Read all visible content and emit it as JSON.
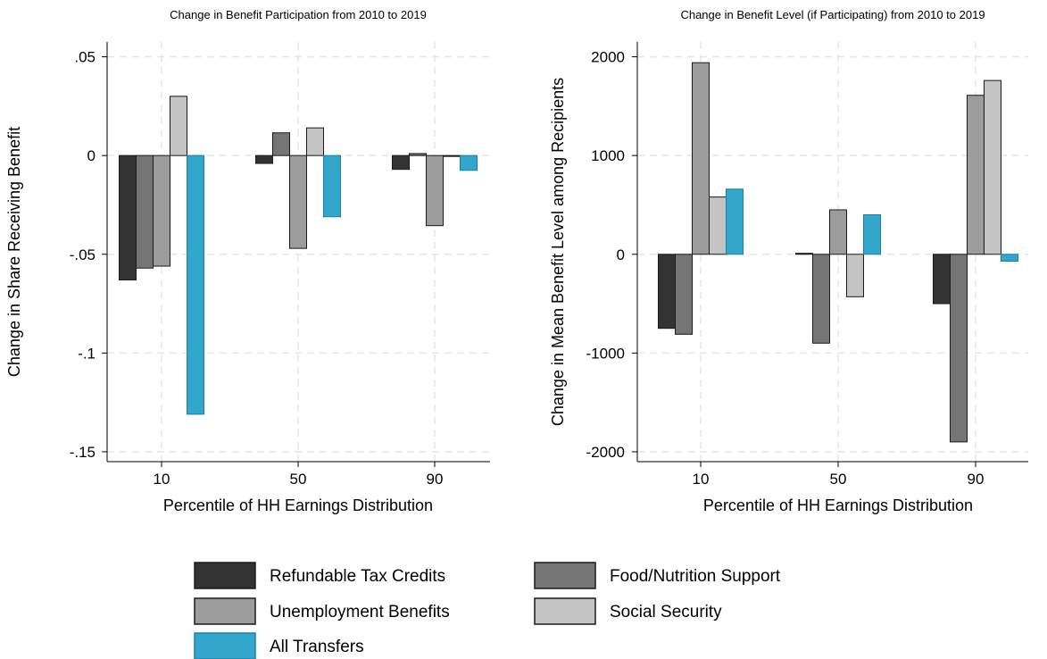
{
  "colors": {
    "background": "#ffffff",
    "grid": "#e6e6e6",
    "axis": "#000000",
    "bar_stroke": "#1a1a1a",
    "all_transfers_stroke": "#1a7fa8"
  },
  "legend": {
    "placement": "bottom",
    "items": [
      {
        "label": "Refundable Tax Credits",
        "color": "#333333"
      },
      {
        "label": "Food/Nutrition Support",
        "color": "#757575"
      },
      {
        "label": "Unemployment Benefits",
        "color": "#9c9c9c"
      },
      {
        "label": "Social Security",
        "color": "#c4c4c4"
      },
      {
        "label": "All Transfers",
        "color": "#33a6cc"
      }
    ]
  },
  "chart_data": [
    {
      "type": "bar",
      "title": "Change in Benefit Participation from 2010 to 2019",
      "xlabel": "Percentile of HH Earnings Distribution",
      "ylabel": "Change in Share Receiving Benefit",
      "categories": [
        "10",
        "50",
        "90"
      ],
      "ylim": [
        -0.155,
        0.0575
      ],
      "yticks": [
        0.05,
        0,
        -0.05,
        -0.1,
        -0.15
      ],
      "ytick_labels": [
        ".05",
        "0",
        "-.05",
        "-.1",
        "-.15"
      ],
      "grid": true,
      "series": [
        {
          "name": "Refundable Tax Credits",
          "values": [
            -0.063,
            -0.004,
            -0.007
          ]
        },
        {
          "name": "Food/Nutrition Support",
          "values": [
            -0.057,
            0.0115,
            0.001
          ]
        },
        {
          "name": "Unemployment Benefits",
          "values": [
            -0.056,
            -0.047,
            -0.0355
          ]
        },
        {
          "name": "Social Security",
          "values": [
            0.03,
            0.014,
            0.0
          ]
        },
        {
          "name": "All Transfers",
          "values": [
            -0.131,
            -0.031,
            -0.0075
          ]
        }
      ]
    },
    {
      "type": "bar",
      "title": "Change in Benefit Level (if Participating) from 2010 to 2019",
      "xlabel": "Percentile of HH Earnings Distribution",
      "ylabel": "Change in Mean Benefit Level among Recipients",
      "categories": [
        "10",
        "50",
        "90"
      ],
      "ylim": [
        -2100,
        2150
      ],
      "yticks": [
        2000,
        1000,
        0,
        -1000,
        -2000
      ],
      "ytick_labels": [
        "2000",
        "1000",
        "0",
        "-1000",
        "-2000"
      ],
      "grid": true,
      "series": [
        {
          "name": "Refundable Tax Credits",
          "values": [
            -750,
            10,
            -500
          ]
        },
        {
          "name": "Food/Nutrition Support",
          "values": [
            -810,
            -900,
            -1900
          ]
        },
        {
          "name": "Unemployment Benefits",
          "values": [
            1940,
            450,
            1610
          ]
        },
        {
          "name": "Social Security",
          "values": [
            580,
            -430,
            1760
          ]
        },
        {
          "name": "All Transfers",
          "values": [
            660,
            400,
            -70
          ]
        }
      ]
    }
  ]
}
